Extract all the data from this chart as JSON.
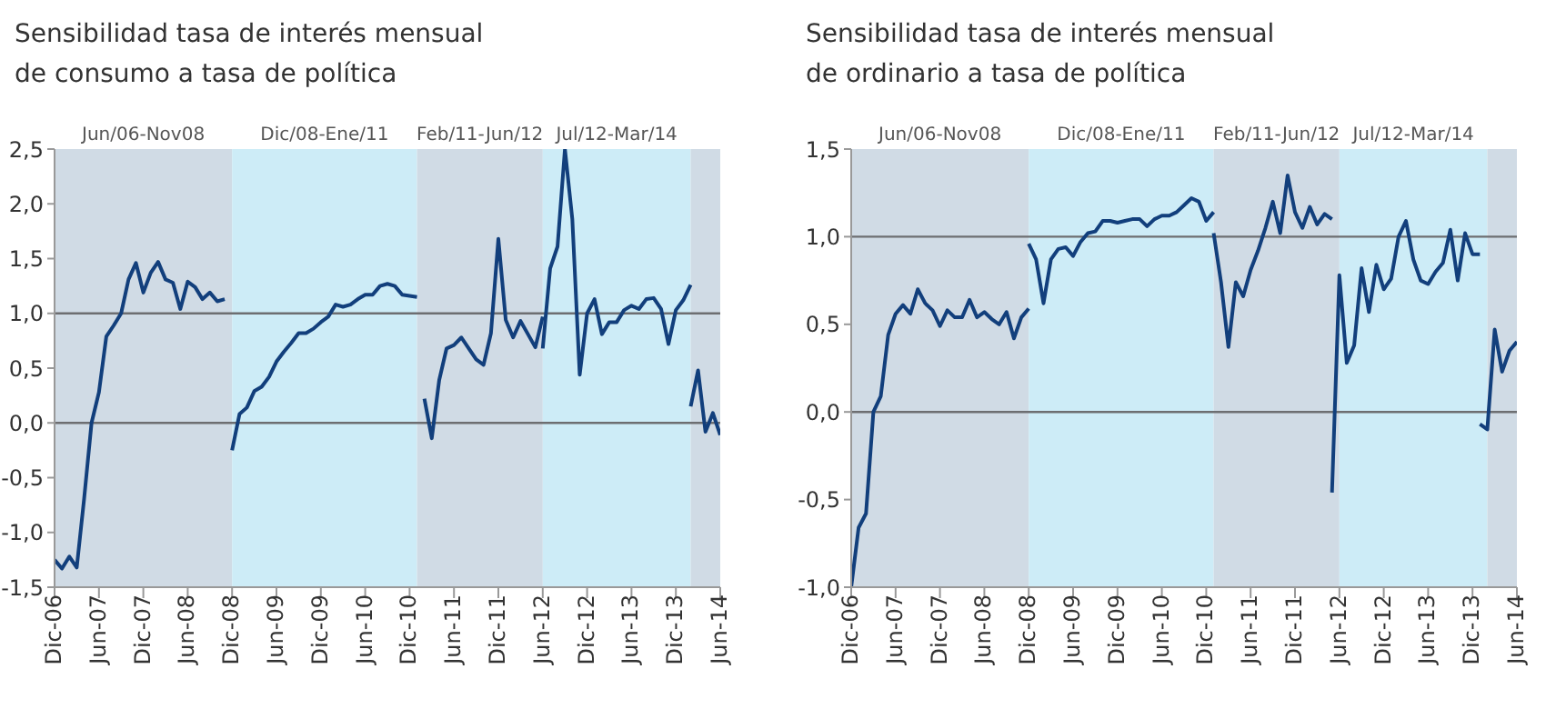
{
  "chart_data": [
    {
      "type": "line",
      "title": "Sensibilidad tasa de interés mensual\nde consumo a tasa de política",
      "xlim": [
        "2006-12",
        "2014-06"
      ],
      "xticks": [
        {
          "value": "2006-12",
          "label": "Dic-06"
        },
        {
          "value": "2007-06",
          "label": "Jun-07"
        },
        {
          "value": "2007-12",
          "label": "Dic-07"
        },
        {
          "value": "2008-06",
          "label": "Jun-08"
        },
        {
          "value": "2008-12",
          "label": "Dic-08"
        },
        {
          "value": "2009-06",
          "label": "Jun-09"
        },
        {
          "value": "2009-12",
          "label": "Dic-09"
        },
        {
          "value": "2010-06",
          "label": "Jun-10"
        },
        {
          "value": "2010-12",
          "label": "Dic-10"
        },
        {
          "value": "2011-06",
          "label": "Jun-11"
        },
        {
          "value": "2011-12",
          "label": "Dic-11"
        },
        {
          "value": "2012-06",
          "label": "Jun-12"
        },
        {
          "value": "2012-12",
          "label": "Dic-12"
        },
        {
          "value": "2013-06",
          "label": "Jun-13"
        },
        {
          "value": "2013-12",
          "label": "Dic-13"
        },
        {
          "value": "2014-06",
          "label": "Jun-14"
        }
      ],
      "ylim": [
        -1.5,
        2.5
      ],
      "yticks": [
        {
          "value": -1.5,
          "label": "-1,5"
        },
        {
          "value": -1,
          "label": "-1,0"
        },
        {
          "value": -0.5,
          "label": "-0,5"
        },
        {
          "value": 0,
          "label": "0,0"
        },
        {
          "value": 0.5,
          "label": "0,5"
        },
        {
          "value": 1,
          "label": "1,0"
        },
        {
          "value": 1.5,
          "label": "1,5"
        },
        {
          "value": 2,
          "label": "2,0"
        },
        {
          "value": 2.5,
          "label": "2,5"
        }
      ],
      "bands": [
        {
          "axis": "x",
          "from": "2006-12",
          "to": "2008-12",
          "label": "Jun/06-Nov08",
          "color": "#d0dbe5"
        },
        {
          "axis": "x",
          "from": "2008-12",
          "to": "2011-01",
          "label": "Dic/08-Ene/11",
          "color": "#cdecf7"
        },
        {
          "axis": "x",
          "from": "2011-01",
          "to": "2012-06",
          "label": "Feb/11-Jun/12",
          "color": "#d0dbe5"
        },
        {
          "axis": "x",
          "from": "2012-06",
          "to": "2014-02",
          "label": "Jul/12-Mar/14",
          "color": "#cdecf7"
        },
        {
          "axis": "x",
          "from": "2014-02",
          "to": "2014-06",
          "color": "#d0dbe5"
        }
      ],
      "ref_lines": [
        {
          "axis": "y",
          "value": 1,
          "color": "#6d6e71"
        },
        {
          "axis": "y",
          "value": 0,
          "color": "#6d6e71"
        }
      ],
      "series": [
        {
          "color": "#123f7c",
          "x": [
            "2006-12",
            "2007-01",
            "2007-02",
            "2007-03",
            "2007-04",
            "2007-05",
            "2007-06",
            "2007-07",
            "2007-08",
            "2007-09",
            "2007-10",
            "2007-11",
            "2007-12",
            "2008-01",
            "2008-02",
            "2008-03",
            "2008-04",
            "2008-05",
            "2008-06",
            "2008-07",
            "2008-08",
            "2008-09",
            "2008-10",
            "2008-11"
          ],
          "values": [
            -1.25,
            -1.33,
            -1.22,
            -1.32,
            -0.69,
            0.0,
            0.28,
            0.79,
            0.89,
            1.0,
            1.31,
            1.46,
            1.19,
            1.37,
            1.47,
            1.31,
            1.28,
            1.04,
            1.29,
            1.24,
            1.13,
            1.19,
            1.11,
            1.13
          ]
        },
        {
          "color": "#123f7c",
          "x": [
            "2008-12",
            "2009-01",
            "2009-02",
            "2009-03",
            "2009-04",
            "2009-05",
            "2009-06",
            "2009-07",
            "2009-08",
            "2009-09",
            "2009-10",
            "2009-11",
            "2009-12",
            "2010-01",
            "2010-02",
            "2010-03",
            "2010-04",
            "2010-05",
            "2010-06",
            "2010-07",
            "2010-08",
            "2010-09",
            "2010-10",
            "2010-11",
            "2010-12",
            "2011-01"
          ],
          "values": [
            -0.25,
            0.08,
            0.14,
            0.29,
            0.33,
            0.42,
            0.56,
            0.65,
            0.73,
            0.82,
            0.82,
            0.86,
            0.92,
            0.97,
            1.08,
            1.06,
            1.08,
            1.13,
            1.17,
            1.17,
            1.25,
            1.27,
            1.25,
            1.17,
            1.16,
            1.15
          ]
        },
        {
          "color": "#123f7c",
          "x": [
            "2011-02",
            "2011-03",
            "2011-04",
            "2011-05",
            "2011-06",
            "2011-07",
            "2011-08",
            "2011-09",
            "2011-10",
            "2011-11",
            "2011-12",
            "2012-01",
            "2012-02",
            "2012-03",
            "2012-04",
            "2012-05",
            "2012-06"
          ],
          "values": [
            0.22,
            -0.14,
            0.39,
            0.68,
            0.71,
            0.78,
            0.68,
            0.58,
            0.53,
            0.82,
            1.68,
            0.94,
            0.78,
            0.93,
            0.81,
            0.69,
            0.97
          ]
        },
        {
          "color": "#123f7c",
          "x": [
            "2012-06",
            "2012-07",
            "2012-08",
            "2012-09",
            "2012-10",
            "2012-11",
            "2012-12",
            "2013-01",
            "2013-02",
            "2013-03",
            "2013-04",
            "2013-05",
            "2013-06",
            "2013-07",
            "2013-08",
            "2013-09",
            "2013-10",
            "2013-11",
            "2013-12",
            "2014-01",
            "2014-02"
          ],
          "values": [
            0.68,
            1.41,
            1.61,
            2.5,
            1.86,
            0.44,
            1.0,
            1.13,
            0.81,
            0.92,
            0.92,
            1.03,
            1.07,
            1.04,
            1.13,
            1.14,
            1.04,
            0.72,
            1.03,
            1.12,
            1.26
          ]
        },
        {
          "color": "#123f7c",
          "x": [
            "2014-02",
            "2014-03",
            "2014-04",
            "2014-05",
            "2014-06"
          ],
          "values": [
            0.15,
            0.48,
            -0.08,
            0.09,
            -0.11
          ]
        }
      ]
    },
    {
      "type": "line",
      "title": "Sensibilidad tasa de interés mensual\nde ordinario a tasa de política",
      "xlim": [
        "2006-12",
        "2014-06"
      ],
      "xticks": [
        {
          "value": "2006-12",
          "label": "Dic-06"
        },
        {
          "value": "2007-06",
          "label": "Jun-07"
        },
        {
          "value": "2007-12",
          "label": "Dic-07"
        },
        {
          "value": "2008-06",
          "label": "Jun-08"
        },
        {
          "value": "2008-12",
          "label": "Dic-08"
        },
        {
          "value": "2009-06",
          "label": "Jun-09"
        },
        {
          "value": "2009-12",
          "label": "Dic-09"
        },
        {
          "value": "2010-06",
          "label": "Jun-10"
        },
        {
          "value": "2010-12",
          "label": "Dic-10"
        },
        {
          "value": "2011-06",
          "label": "Jun-11"
        },
        {
          "value": "2011-12",
          "label": "Dic-11"
        },
        {
          "value": "2012-06",
          "label": "Jun-12"
        },
        {
          "value": "2012-12",
          "label": "Dic-12"
        },
        {
          "value": "2013-06",
          "label": "Jun-13"
        },
        {
          "value": "2013-12",
          "label": "Dic-13"
        },
        {
          "value": "2014-06",
          "label": "Jun-14"
        }
      ],
      "ylim": [
        -1,
        1.5
      ],
      "yticks": [
        {
          "value": -1,
          "label": "-1,0"
        },
        {
          "value": -0.5,
          "label": "-0,5"
        },
        {
          "value": 0,
          "label": "0,0"
        },
        {
          "value": 0.5,
          "label": "0,5"
        },
        {
          "value": 1,
          "label": "1,0"
        },
        {
          "value": 1.5,
          "label": "1,5"
        }
      ],
      "bands": [
        {
          "axis": "x",
          "from": "2006-12",
          "to": "2008-12",
          "label": "Jun/06-Nov08",
          "color": "#d0dbe5"
        },
        {
          "axis": "x",
          "from": "2008-12",
          "to": "2011-01",
          "label": "Dic/08-Ene/11",
          "color": "#cdecf7"
        },
        {
          "axis": "x",
          "from": "2011-01",
          "to": "2012-06",
          "label": "Feb/11-Jun/12",
          "color": "#d0dbe5"
        },
        {
          "axis": "x",
          "from": "2012-06",
          "to": "2014-02",
          "label": "Jul/12-Mar/14",
          "color": "#cdecf7"
        },
        {
          "axis": "x",
          "from": "2014-02",
          "to": "2014-06",
          "color": "#d0dbe5"
        }
      ],
      "ref_lines": [
        {
          "axis": "y",
          "value": 1,
          "color": "#6d6e71"
        },
        {
          "axis": "y",
          "value": 0,
          "color": "#6d6e71"
        }
      ],
      "series": [
        {
          "color": "#123f7c",
          "x": [
            "2006-12",
            "2007-01",
            "2007-02",
            "2007-03",
            "2007-04",
            "2007-05",
            "2007-06",
            "2007-07",
            "2007-08",
            "2007-09",
            "2007-10",
            "2007-11",
            "2007-12",
            "2008-01",
            "2008-02",
            "2008-03",
            "2008-04",
            "2008-05",
            "2008-06",
            "2008-07",
            "2008-08",
            "2008-09",
            "2008-10",
            "2008-11",
            "2008-12"
          ],
          "values": [
            -1.0,
            -0.66,
            -0.58,
            0.0,
            0.09,
            0.44,
            0.56,
            0.61,
            0.56,
            0.7,
            0.62,
            0.58,
            0.49,
            0.58,
            0.54,
            0.54,
            0.64,
            0.54,
            0.57,
            0.53,
            0.5,
            0.57,
            0.42,
            0.54,
            0.59
          ]
        },
        {
          "color": "#123f7c",
          "x": [
            "2008-12",
            "2009-01",
            "2009-02",
            "2009-03",
            "2009-04",
            "2009-05",
            "2009-06",
            "2009-07",
            "2009-08",
            "2009-09",
            "2009-10",
            "2009-11",
            "2009-12",
            "2010-01",
            "2010-02",
            "2010-03",
            "2010-04",
            "2010-05",
            "2010-06",
            "2010-07",
            "2010-08",
            "2010-09",
            "2010-10",
            "2010-11",
            "2010-12",
            "2011-01"
          ],
          "values": [
            0.96,
            0.87,
            0.62,
            0.87,
            0.93,
            0.94,
            0.89,
            0.97,
            1.02,
            1.03,
            1.09,
            1.09,
            1.08,
            1.09,
            1.1,
            1.1,
            1.06,
            1.1,
            1.12,
            1.12,
            1.14,
            1.18,
            1.22,
            1.2,
            1.09,
            1.14
          ]
        },
        {
          "color": "#123f7c",
          "x": [
            "2011-01",
            "2011-02",
            "2011-03",
            "2011-04",
            "2011-05",
            "2011-06",
            "2011-07",
            "2011-08",
            "2011-09",
            "2011-10",
            "2011-11",
            "2011-12",
            "2012-01",
            "2012-02",
            "2012-03",
            "2012-04",
            "2012-05"
          ],
          "values": [
            1.02,
            0.74,
            0.37,
            0.74,
            0.66,
            0.81,
            0.92,
            1.05,
            1.2,
            1.02,
            1.35,
            1.14,
            1.05,
            1.17,
            1.07,
            1.13,
            1.1
          ]
        },
        {
          "color": "#123f7c",
          "x": [
            "2012-05",
            "2012-06",
            "2012-07",
            "2012-08",
            "2012-09",
            "2012-10",
            "2012-11",
            "2012-12",
            "2013-01",
            "2013-02",
            "2013-03",
            "2013-04",
            "2013-05",
            "2013-06",
            "2013-07",
            "2013-08",
            "2013-09",
            "2013-10",
            "2013-11",
            "2013-12",
            "2014-01"
          ],
          "values": [
            -0.46,
            0.78,
            0.28,
            0.38,
            0.82,
            0.57,
            0.84,
            0.7,
            0.76,
            1.0,
            1.09,
            0.87,
            0.75,
            0.73,
            0.8,
            0.85,
            1.04,
            0.75,
            1.02,
            0.9,
            0.9
          ]
        },
        {
          "color": "#123f7c",
          "x": [
            "2014-01",
            "2014-02",
            "2014-03",
            "2014-04",
            "2014-05",
            "2014-06"
          ],
          "values": [
            -0.07,
            -0.1,
            0.47,
            0.23,
            0.35,
            0.4
          ]
        }
      ]
    }
  ]
}
